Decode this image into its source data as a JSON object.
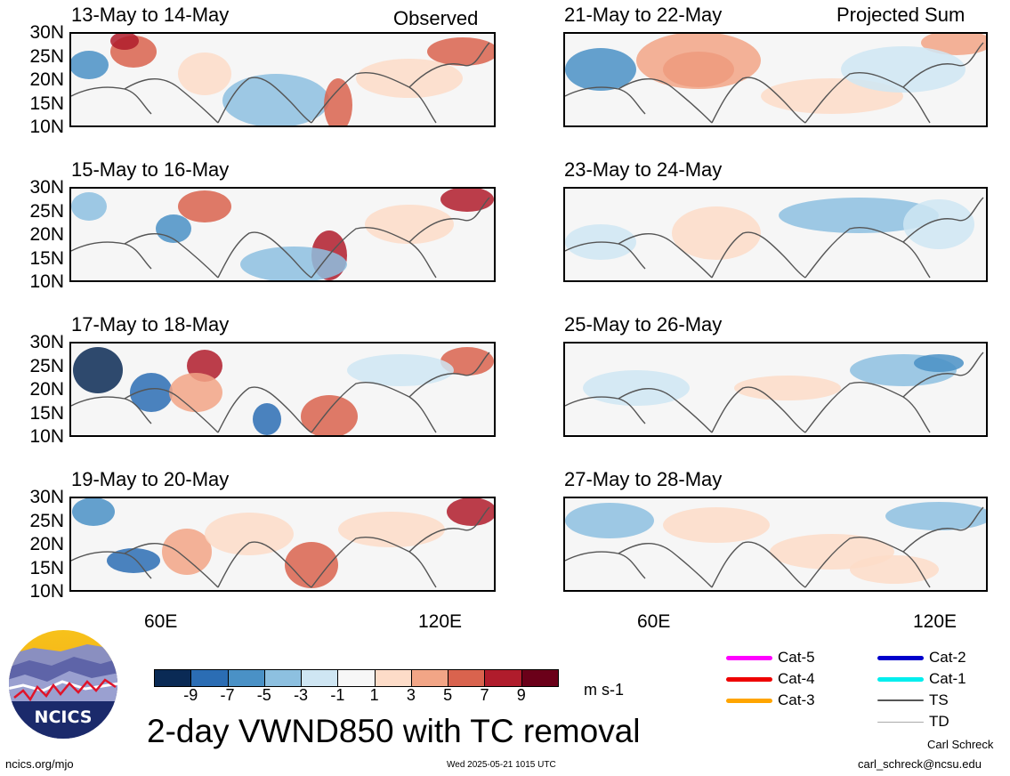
{
  "header": {
    "left_label": "Observed",
    "right_label": "Projected Sum"
  },
  "panels": [
    {
      "id": "p1",
      "title": "13-May to 14-May",
      "column": "observed"
    },
    {
      "id": "p2",
      "title": "15-May to 16-May",
      "column": "observed"
    },
    {
      "id": "p3",
      "title": "17-May to 18-May",
      "column": "observed"
    },
    {
      "id": "p4",
      "title": "19-May to 20-May",
      "column": "observed"
    },
    {
      "id": "p5",
      "title": "21-May to 22-May",
      "column": "projected"
    },
    {
      "id": "p6",
      "title": "23-May to 24-May",
      "column": "projected"
    },
    {
      "id": "p7",
      "title": "25-May to 26-May",
      "column": "projected"
    },
    {
      "id": "p8",
      "title": "27-May to 28-May",
      "column": "projected"
    }
  ],
  "y_ticks": [
    "30N",
    "25N",
    "20N",
    "15N",
    "10N"
  ],
  "x_ticks": [
    "60E",
    "120E"
  ],
  "colorbar": {
    "labels": [
      "-9",
      "-7",
      "-5",
      "-3",
      "-1",
      "1",
      "3",
      "5",
      "7",
      "9"
    ],
    "colors": [
      "#0a2a55",
      "#2b6db4",
      "#4a91c6",
      "#8dc0e0",
      "#cfe6f3",
      "#f7f7f7",
      "#fddcc8",
      "#f2a586",
      "#d9634e",
      "#b01c2c",
      "#6b0019"
    ],
    "units": "m s-1"
  },
  "legend": [
    {
      "label": "Cat-5",
      "color": "#ff00ff"
    },
    {
      "label": "Cat-4",
      "color": "#ee0000"
    },
    {
      "label": "Cat-3",
      "color": "#ffa500"
    },
    {
      "label": "Cat-2",
      "color": "#0000cc"
    },
    {
      "label": "Cat-1",
      "color": "#00eeee"
    },
    {
      "label": "TS",
      "color": "#555555"
    },
    {
      "label": "TD",
      "color": "#aaaaaa"
    }
  ],
  "logo": {
    "text": "NCICS"
  },
  "title": "2-day VWND850 with TC removal",
  "footer": {
    "url": "ncics.org/mjo",
    "timestamp": "Wed 2025-05-21 1015 UTC",
    "author": "Carl Schreck",
    "email": "carl_schreck@ncsu.edu"
  }
}
